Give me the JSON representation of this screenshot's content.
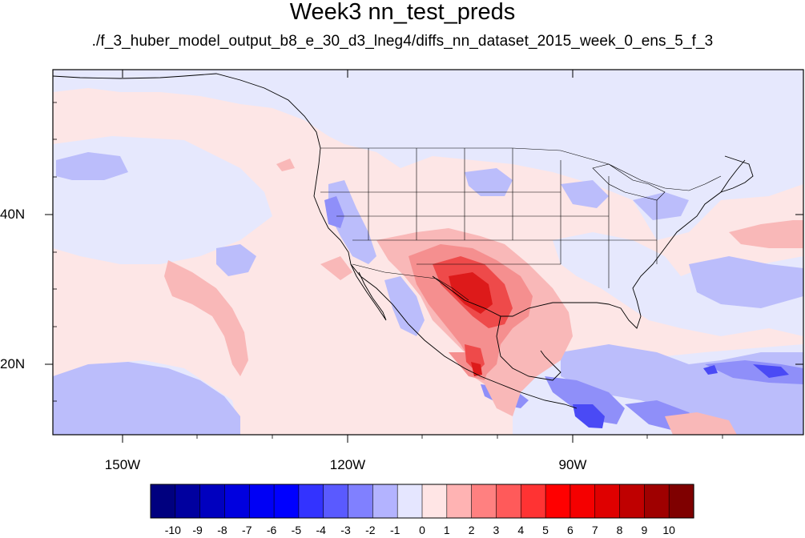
{
  "title": "Week3 nn_test_preds",
  "subtitle": "./f_3_huber_model_output_b8_e_30_d3_lneg4/diffs_nn_dataset_2015_week_0_ens_5_f_3",
  "map": {
    "lon_range": [
      -169,
      -71
    ],
    "lat_range": [
      10,
      59
    ],
    "longitude_labels": [
      "150W",
      "120W",
      "90W"
    ],
    "latitude_labels": [
      "40N",
      "20N"
    ]
  },
  "colorbar": {
    "labels": [
      "-10",
      "-9",
      "-8",
      "-7",
      "-6",
      "-5",
      "-4",
      "-3",
      "-2",
      "-1",
      "0",
      "1",
      "2",
      "3",
      "4",
      "5",
      "6",
      "7",
      "8",
      "9",
      "10"
    ],
    "colors": [
      "#00007f",
      "#00009f",
      "#0000bf",
      "#0000df",
      "#0000f5",
      "#0000ff",
      "#3333ff",
      "#5a5aff",
      "#8080ff",
      "#b3b3ff",
      "#e5e6ff",
      "#ffe5e5",
      "#ffb3b3",
      "#ff8080",
      "#ff5a5a",
      "#ff3333",
      "#ff0000",
      "#f50000",
      "#df0000",
      "#bf0000",
      "#9f0000",
      "#7f0000"
    ]
  },
  "palette": {
    "neutral_negative": "#e6e8fd",
    "neutral_positive": "#fde6e6",
    "light_blue": "#bbbdfb",
    "mid_blue": "#8f8ff9",
    "strong_blue": "#4a4af5",
    "light_red": "#f9b8b8",
    "mid_red": "#f58f8f",
    "strong_red": "#ee4a4a",
    "deep_red": "#dd1a1a"
  }
}
